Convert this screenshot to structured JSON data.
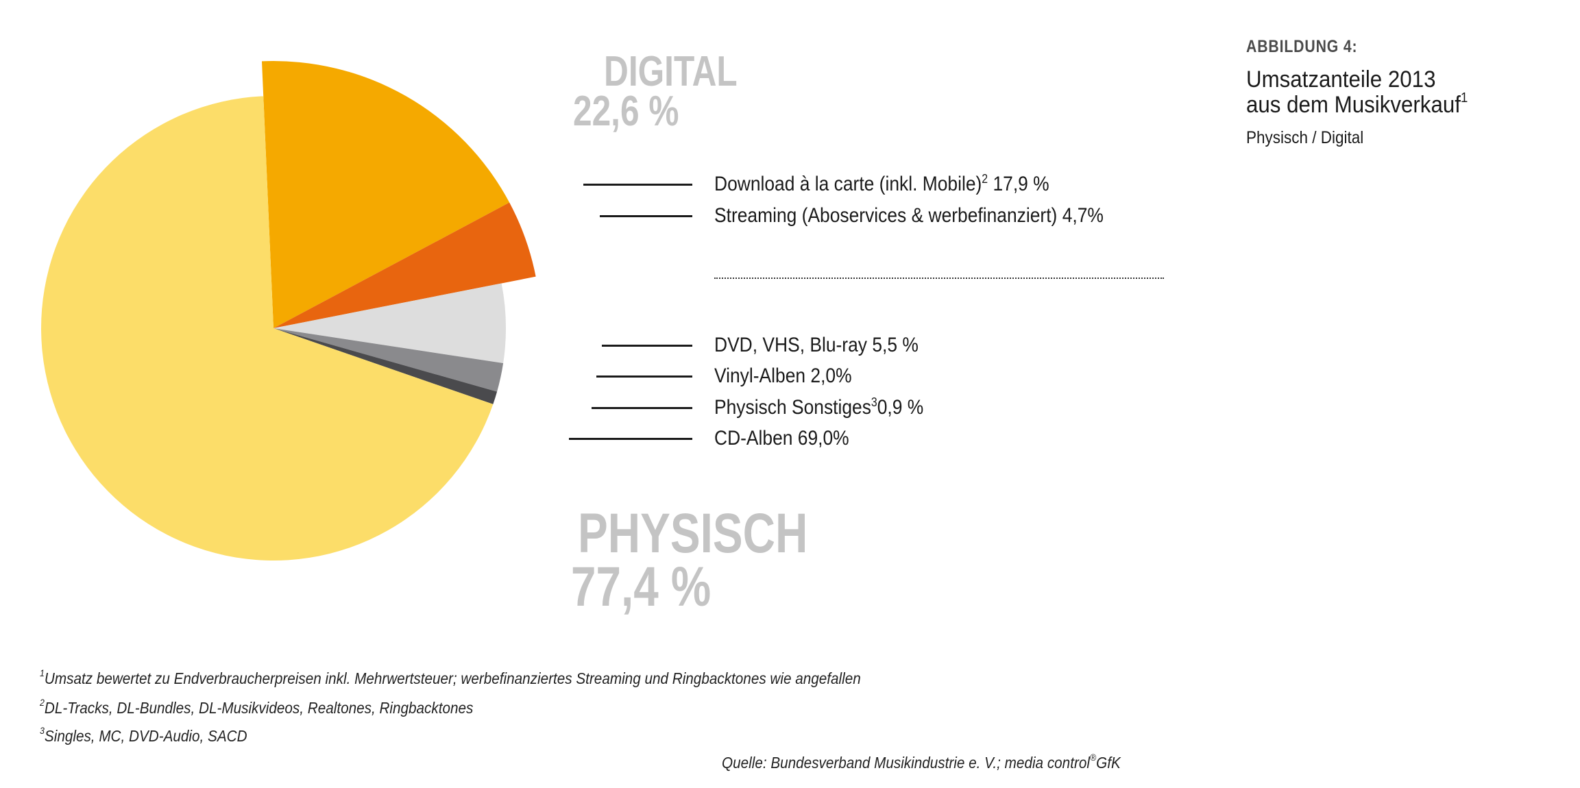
{
  "header": {
    "figure_label": "ABBILDUNG 4:",
    "title_line1": "Umsatzanteile 2013",
    "title_line2": "aus dem Musikverkauf",
    "title_sup": "1",
    "subtitle": "Physisch / Digital"
  },
  "groups": {
    "digital": {
      "label": "DIGITAL",
      "value": "22,6 %"
    },
    "physisch": {
      "label": "PHYSISCH",
      "value": "77,4 %"
    }
  },
  "legend": [
    {
      "label": "Download à la carte (inkl. Mobile)",
      "sup": "2",
      "value": "17,9 %"
    },
    {
      "label": "Streaming (Aboservices & werbefinanziert)",
      "sup": "",
      "value": "4,7%"
    },
    {
      "label": "DVD, VHS, Blu-ray",
      "sup": "",
      "value": "5,5 %"
    },
    {
      "label": "Vinyl-Alben",
      "sup": "",
      "value": "2,0%"
    },
    {
      "label": "Physisch Sonstiges",
      "sup": "3",
      "value": "0,9 %"
    },
    {
      "label": "CD-Alben",
      "sup": "",
      "value": "69,0%"
    }
  ],
  "footnotes": [
    {
      "sup": "1",
      "text": "Umsatz bewertet zu Endverbraucherpreisen inkl. Mehrwertsteuer; werbefinanziertes Streaming und Ringbacktones wie angefallen"
    },
    {
      "sup": "2",
      "text": "DL-Tracks, DL-Bundles, DL-Musikvideos, Realtones, Ringbacktones"
    },
    {
      "sup": "3",
      "text": "Singles, MC, DVD-Audio, SACD"
    }
  ],
  "source": {
    "text": "Quelle: Bundesverband Musikindustrie e. V.; media control",
    "reg": "®",
    "tail": "GfK"
  },
  "chart_data": {
    "type": "pie",
    "title": "Umsatzanteile 2013 aus dem Musikverkauf",
    "subtitle": "Physisch / Digital",
    "slices": [
      {
        "name": "Download à la carte (inkl. Mobile)",
        "value": 17.9,
        "group": "Digital",
        "color": "#f5a900",
        "exploded": true
      },
      {
        "name": "Streaming (Aboservices & werbefinanziert)",
        "value": 4.7,
        "group": "Digital",
        "color": "#e8650f",
        "exploded": true
      },
      {
        "name": "DVD, VHS, Blu-ray",
        "value": 5.5,
        "group": "Physisch",
        "color": "#dddddd",
        "exploded": false
      },
      {
        "name": "Vinyl-Alben",
        "value": 2.0,
        "group": "Physisch",
        "color": "#8a8a8d",
        "exploded": false
      },
      {
        "name": "Physisch Sonstiges",
        "value": 0.9,
        "group": "Physisch",
        "color": "#4a4a4d",
        "exploded": false
      },
      {
        "name": "CD-Alben",
        "value": 69.0,
        "group": "Physisch",
        "color": "#fcdd69",
        "exploded": false
      }
    ],
    "group_totals": {
      "Digital": 22.6,
      "Physisch": 77.4
    },
    "legend_placement": "right"
  }
}
